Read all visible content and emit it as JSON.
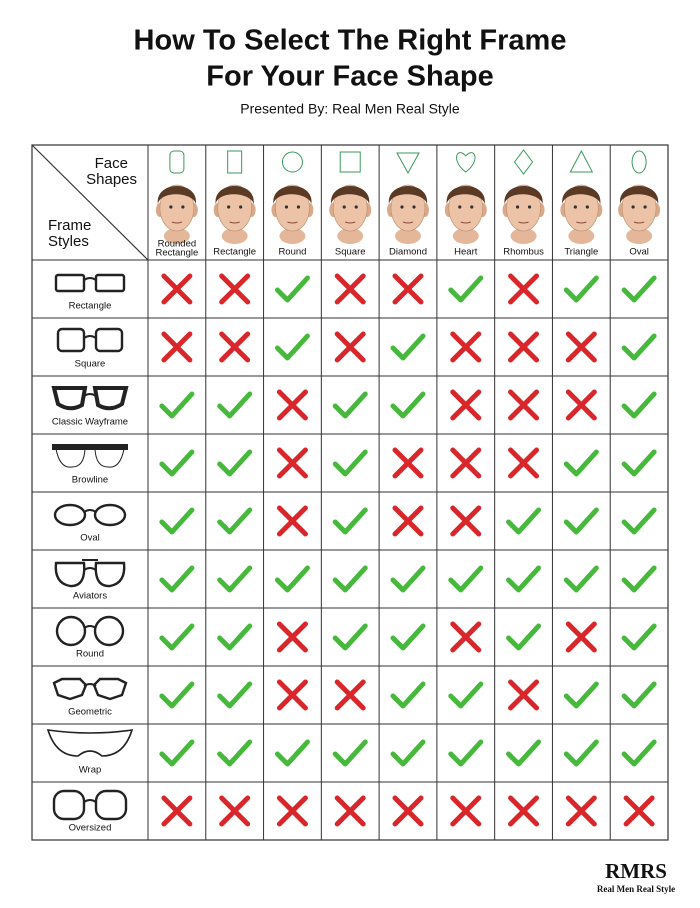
{
  "title": [
    "How To Select The Right Frame",
    "For Your Face Shape"
  ],
  "subtitle": "Presented By: Real Men Real Style",
  "corner": {
    "top": [
      "Face",
      "Shapes"
    ],
    "bottom": [
      "Frame",
      "Styles"
    ]
  },
  "columns": [
    [
      "Rounded",
      "Rectangle"
    ],
    [
      "Rectangle"
    ],
    [
      "Round"
    ],
    [
      "Square"
    ],
    [
      "Diamond"
    ],
    [
      "Heart"
    ],
    [
      "Rhombus"
    ],
    [
      "Triangle"
    ],
    [
      "Oval"
    ]
  ],
  "rows": [
    {
      "name": "Rectangle",
      "fits": [
        false,
        false,
        true,
        false,
        false,
        true,
        false,
        true,
        true
      ]
    },
    {
      "name": "Square",
      "fits": [
        false,
        false,
        true,
        false,
        true,
        false,
        false,
        false,
        true
      ]
    },
    {
      "name": "Classic Wayframe",
      "fits": [
        true,
        true,
        false,
        true,
        true,
        false,
        false,
        false,
        true
      ]
    },
    {
      "name": "Browline",
      "fits": [
        true,
        true,
        false,
        true,
        false,
        false,
        false,
        true,
        true
      ]
    },
    {
      "name": "Oval",
      "fits": [
        true,
        true,
        false,
        true,
        false,
        false,
        true,
        true,
        true
      ]
    },
    {
      "name": "Aviators",
      "fits": [
        true,
        true,
        true,
        true,
        true,
        true,
        true,
        true,
        true
      ]
    },
    {
      "name": "Round",
      "fits": [
        true,
        true,
        false,
        true,
        true,
        false,
        true,
        false,
        true
      ]
    },
    {
      "name": "Geometric",
      "fits": [
        true,
        true,
        false,
        false,
        true,
        true,
        false,
        true,
        true
      ]
    },
    {
      "name": "Wrap",
      "fits": [
        true,
        true,
        true,
        true,
        true,
        true,
        true,
        true,
        true
      ]
    },
    {
      "name": "Oversized",
      "fits": [
        false,
        false,
        false,
        false,
        false,
        false,
        false,
        false,
        false
      ]
    }
  ],
  "logo": {
    "mark": "RMRS",
    "name": "Real Men Real Style"
  }
}
